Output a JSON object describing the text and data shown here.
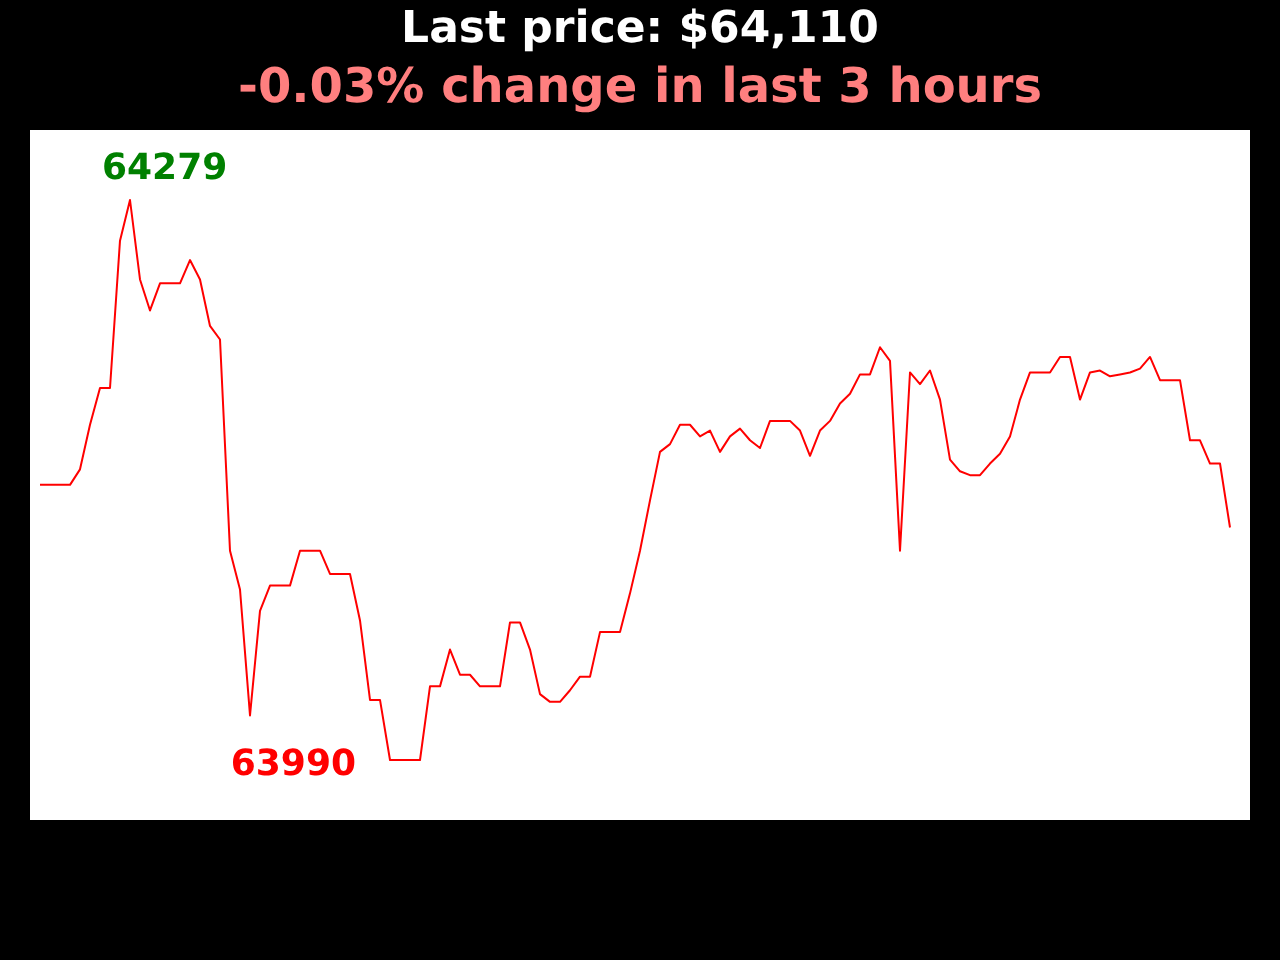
{
  "chart_data": {
    "type": "line",
    "title": "Last price: $64,110",
    "subtitle": "-0.03% change in last 3 hours",
    "categories": [
      null,
      null,
      null,
      null,
      null,
      null,
      null,
      null,
      null,
      null,
      null,
      null,
      null,
      null,
      null,
      null,
      null,
      null,
      null,
      null,
      null,
      null,
      null,
      null,
      null,
      null,
      null,
      null,
      null,
      null,
      null,
      null,
      null,
      null,
      null,
      null,
      null,
      null,
      null,
      null,
      null,
      null,
      null,
      null,
      null,
      null,
      null,
      null,
      null,
      null,
      null,
      null,
      null,
      null,
      null,
      null,
      null,
      null,
      null,
      null,
      null,
      null,
      null,
      null,
      null,
      null,
      null,
      null,
      null,
      null,
      null,
      null,
      null,
      null,
      null,
      null,
      null,
      null,
      null,
      null,
      null,
      null,
      null,
      null,
      null,
      null,
      null,
      null,
      null,
      null,
      null,
      null,
      null,
      null,
      null,
      null,
      null,
      null,
      null,
      null,
      null,
      null,
      null,
      null,
      null,
      null,
      null,
      null,
      null,
      null,
      null,
      null,
      null,
      null,
      null,
      null,
      null,
      null,
      null,
      null
    ],
    "series": [
      {
        "color": "#ff0000",
        "values": [
          64132,
          64132,
          64132,
          64132,
          64140,
          64163,
          64182,
          64182,
          64258,
          64279,
          64238,
          64222,
          64236,
          64236,
          64236,
          64248,
          64238,
          64214,
          64207,
          64098,
          64078,
          64013,
          64067,
          64080,
          64080,
          64080,
          64098,
          64098,
          64098,
          64086,
          64086,
          64086,
          64062,
          64021,
          64021,
          63990,
          63990,
          63990,
          63990,
          64028,
          64028,
          64047,
          64034,
          64034,
          64028,
          64028,
          64028,
          64061,
          64061,
          64047,
          64024,
          64020,
          64020,
          64026,
          64033,
          64033,
          64056,
          64056,
          64056,
          64076,
          64098,
          64124,
          64149,
          64153,
          64163,
          64163,
          64157,
          64160,
          64149,
          64157,
          64161,
          64155,
          64151,
          64165,
          64165,
          64165,
          64160,
          64147,
          64160,
          64165,
          64174,
          64179,
          64189,
          64189,
          64203,
          64196,
          64098,
          64190,
          64184,
          64191,
          64176,
          64145,
          64139,
          64137,
          64137,
          64143,
          64148,
          64157,
          64176,
          64190,
          64190,
          64190,
          64198,
          64198,
          64176,
          64190,
          64191,
          64188,
          64189,
          64190,
          64192,
          64198,
          64186,
          64186,
          64186,
          64155,
          64155,
          64143,
          64143,
          64110
        ],
        "value_labels": [
          null,
          null,
          null,
          null,
          null,
          null,
          null,
          null,
          null,
          "64279",
          null,
          null,
          null,
          null,
          null,
          null,
          null,
          null,
          null,
          null,
          null,
          null,
          null,
          null,
          null,
          null,
          null,
          null,
          null,
          null,
          null,
          null,
          null,
          null,
          null,
          "63990",
          null,
          null,
          null,
          null,
          null,
          null,
          null,
          null,
          null,
          null,
          null,
          null,
          null,
          null,
          null,
          null,
          null,
          null,
          null,
          null,
          null,
          null,
          null,
          null,
          null,
          null,
          null,
          null,
          null,
          null,
          null,
          null,
          null,
          null,
          null,
          null,
          null,
          null,
          null,
          null,
          null,
          null,
          null,
          null,
          null,
          null,
          null,
          null,
          null,
          null,
          null,
          null,
          null,
          null,
          null,
          null,
          null,
          null,
          null,
          null,
          null,
          null,
          null,
          null,
          null,
          null,
          null,
          null,
          null,
          null,
          null,
          null,
          null,
          null,
          null,
          null,
          null,
          null,
          null,
          null,
          null,
          null,
          null,
          null
        ]
      }
    ],
    "marker": "none",
    "line_style": "solid"
  }
}
